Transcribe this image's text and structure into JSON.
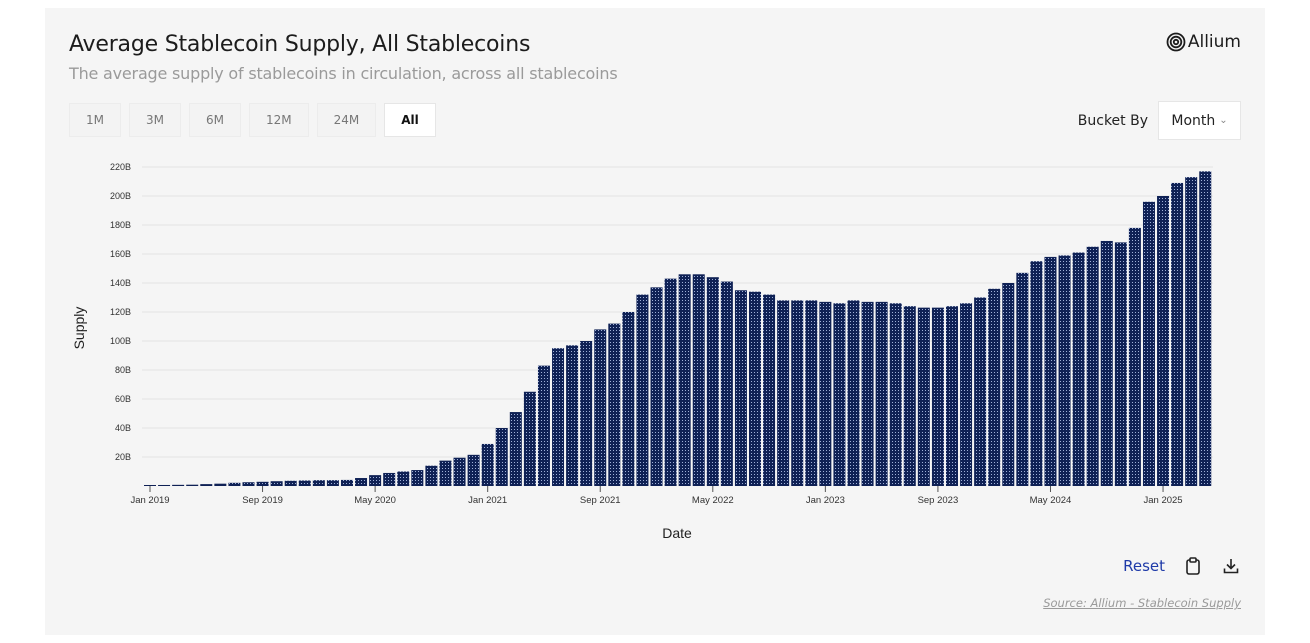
{
  "header": {
    "title": "Average Stablecoin Supply, All Stablecoins",
    "subtitle": "The average supply of stablecoins in circulation, across all stablecoins",
    "brand": "Allium"
  },
  "controls": {
    "range_tabs": [
      {
        "label": "1M",
        "active": false
      },
      {
        "label": "3M",
        "active": false
      },
      {
        "label": "6M",
        "active": false
      },
      {
        "label": "12M",
        "active": false
      },
      {
        "label": "24M",
        "active": false
      },
      {
        "label": "All",
        "active": true
      }
    ],
    "bucket_label": "Bucket By",
    "bucket_value": "Month"
  },
  "footer": {
    "reset_label": "Reset",
    "copy_icon": "clipboard-icon",
    "download_icon": "download-icon",
    "source_text": "Source: Allium - Stablecoin Supply"
  },
  "colors": {
    "bar": "#0f2155",
    "reset": "#1e3aa8"
  },
  "chart_data": {
    "type": "bar",
    "title": "Average Stablecoin Supply, All Stablecoins",
    "xlabel": "Date",
    "ylabel": "Supply",
    "ylim": [
      0,
      220
    ],
    "y_unit": "B",
    "y_ticks": [
      "20B",
      "40B",
      "60B",
      "80B",
      "100B",
      "120B",
      "140B",
      "160B",
      "180B",
      "200B",
      "220B"
    ],
    "x_ticks": [
      {
        "label": "Jan 2019",
        "index": 0
      },
      {
        "label": "Sep 2019",
        "index": 8
      },
      {
        "label": "May 2020",
        "index": 16
      },
      {
        "label": "Jan 2021",
        "index": 24
      },
      {
        "label": "Sep 2021",
        "index": 32
      },
      {
        "label": "May 2022",
        "index": 40
      },
      {
        "label": "Jan 2023",
        "index": 48
      },
      {
        "label": "Sep 2023",
        "index": 56
      },
      {
        "label": "May 2024",
        "index": 64
      },
      {
        "label": "Jan 2025",
        "index": 72
      }
    ],
    "grid": true,
    "categories": [
      "Jan 2019",
      "Feb 2019",
      "Mar 2019",
      "Apr 2019",
      "May 2019",
      "Jun 2019",
      "Jul 2019",
      "Aug 2019",
      "Sep 2019",
      "Oct 2019",
      "Nov 2019",
      "Dec 2019",
      "Jan 2020",
      "Feb 2020",
      "Mar 2020",
      "Apr 2020",
      "May 2020",
      "Jun 2020",
      "Jul 2020",
      "Aug 2020",
      "Sep 2020",
      "Oct 2020",
      "Nov 2020",
      "Dec 2020",
      "Jan 2021",
      "Feb 2021",
      "Mar 2021",
      "Apr 2021",
      "May 2021",
      "Jun 2021",
      "Jul 2021",
      "Aug 2021",
      "Sep 2021",
      "Oct 2021",
      "Nov 2021",
      "Dec 2021",
      "Jan 2022",
      "Feb 2022",
      "Mar 2022",
      "Apr 2022",
      "May 2022",
      "Jun 2022",
      "Jul 2022",
      "Aug 2022",
      "Sep 2022",
      "Oct 2022",
      "Nov 2022",
      "Dec 2022",
      "Jan 2023",
      "Feb 2023",
      "Mar 2023",
      "Apr 2023",
      "May 2023",
      "Jun 2023",
      "Jul 2023",
      "Aug 2023",
      "Sep 2023",
      "Oct 2023",
      "Nov 2023",
      "Dec 2023",
      "Jan 2024",
      "Feb 2024",
      "Mar 2024",
      "Apr 2024",
      "May 2024",
      "Jun 2024",
      "Jul 2024",
      "Aug 2024",
      "Sep 2024",
      "Oct 2024",
      "Nov 2024",
      "Dec 2024",
      "Jan 2025",
      "Feb 2025",
      "Mar 2025",
      "Apr 2025"
    ],
    "series": [
      {
        "name": "Supply",
        "values": [
          0.6,
          0.7,
          0.8,
          0.9,
          1.3,
          1.6,
          2.2,
          2.6,
          2.9,
          3.3,
          3.6,
          3.8,
          4.0,
          4.0,
          4.2,
          5.5,
          7.5,
          9.0,
          10.0,
          11.0,
          14.0,
          17.5,
          19.5,
          21.5,
          29,
          40,
          51,
          65,
          83,
          95,
          97,
          100,
          108,
          112,
          120,
          132,
          137,
          143,
          146,
          146,
          144,
          141,
          135,
          134,
          132,
          128,
          128,
          128,
          127,
          126,
          128,
          127,
          127,
          126,
          124,
          123,
          123,
          124,
          126,
          130,
          136,
          140,
          147,
          155,
          158,
          159,
          161,
          165,
          169,
          168,
          178,
          196,
          200,
          209,
          213,
          217
        ]
      }
    ]
  }
}
